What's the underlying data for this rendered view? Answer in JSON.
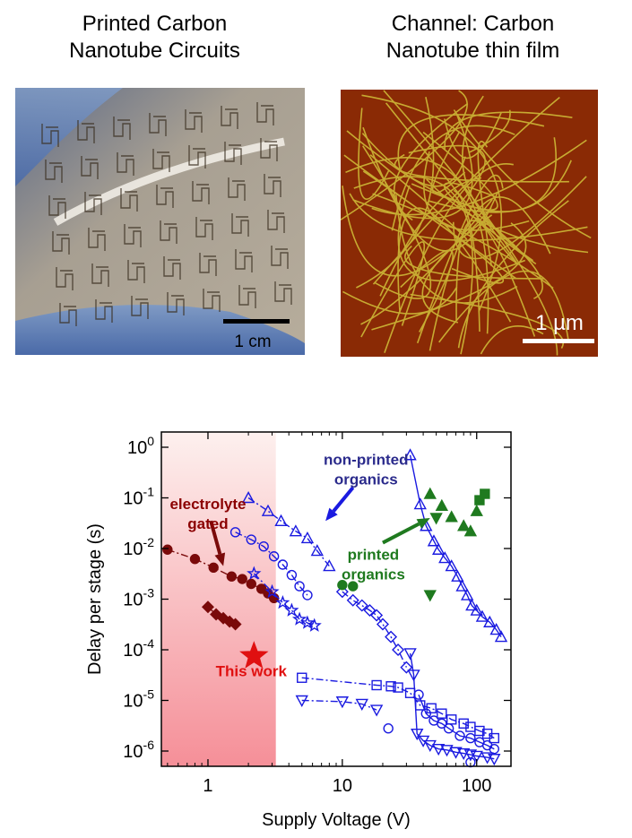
{
  "captions": {
    "left": [
      "Printed Carbon",
      "Nanotube Circuits"
    ],
    "right": [
      "Channel: Carbon",
      "Nanotube thin film"
    ]
  },
  "photos": {
    "left": {
      "subject": "flexible substrate with printed carbon nanotube circuits held by gloved hand",
      "scale_label": "1 cm"
    },
    "right": {
      "subject": "microscope image of carbon nanotube network",
      "scale_label": "1 µm"
    }
  },
  "chart_data": {
    "type": "scatter",
    "xlabel": "Supply Voltage (V)",
    "ylabel": "Delay per stage (s)",
    "x_scale": "log",
    "y_scale": "log",
    "xlim": [
      0.45,
      180
    ],
    "ylim": [
      5e-07,
      2
    ],
    "x_ticks": [
      {
        "v": 1,
        "label": "1"
      },
      {
        "v": 10,
        "label": "10"
      },
      {
        "v": 100,
        "label": "100"
      }
    ],
    "y_ticks": [
      {
        "v": 1,
        "exp": "0"
      },
      {
        "v": 0.1,
        "exp": "-1"
      },
      {
        "v": 0.01,
        "exp": "-2"
      },
      {
        "v": 0.001,
        "exp": "-3"
      },
      {
        "v": 0.0001,
        "exp": "-4"
      },
      {
        "v": 1e-05,
        "exp": "-5"
      },
      {
        "v": 1e-06,
        "exp": "-6"
      }
    ],
    "tick_base": "10",
    "shaded_region": {
      "x_end": 3.2,
      "color_top": "#fdf0ee",
      "color_bottom": "#f58f98"
    },
    "annotations": [
      {
        "lines": [
          "electrolyte",
          "gated"
        ],
        "color": "#8b0000",
        "x": 1.0,
        "y": 0.06
      },
      {
        "lines": [
          "non-printed",
          "organics"
        ],
        "color": "#2b2b8c",
        "x": 15,
        "y": 0.45
      },
      {
        "lines": [
          "printed",
          "organics"
        ],
        "color": "#1f7a1f",
        "x": 17,
        "y": 0.006
      },
      {
        "lines": [
          "This work"
        ],
        "color": "#e01010",
        "x": 2.1,
        "y": 3e-05
      }
    ],
    "series": [
      {
        "marker": "circle-filled",
        "color": "#7a0a0a",
        "line": "dashdot",
        "points": [
          [
            0.5,
            0.0095
          ],
          [
            0.8,
            0.0062
          ],
          [
            1.1,
            0.0042
          ],
          [
            1.5,
            0.0028
          ],
          [
            1.8,
            0.0025
          ],
          [
            2.1,
            0.002
          ],
          [
            2.5,
            0.0016
          ],
          [
            2.8,
            0.0013
          ],
          [
            3.1,
            0.00105
          ]
        ]
      },
      {
        "marker": "diamond-filled",
        "color": "#7a0a0a",
        "line": "solid",
        "points": [
          [
            1.0,
            0.0007
          ],
          [
            1.15,
            0.0005
          ],
          [
            1.3,
            0.00042
          ],
          [
            1.45,
            0.00036
          ],
          [
            1.6,
            0.00032
          ]
        ]
      },
      {
        "marker": "triangle-up-open",
        "color": "#1a1ae0",
        "line": "dashdot",
        "points": [
          [
            2.0,
            0.1
          ],
          [
            2.8,
            0.055
          ],
          [
            3.5,
            0.035
          ],
          [
            4.5,
            0.022
          ],
          [
            5.5,
            0.016
          ],
          [
            6.5,
            0.009
          ],
          [
            8,
            0.0045
          ]
        ]
      },
      {
        "marker": "circle-open",
        "color": "#1a1ae0",
        "line": "dashdot",
        "points": [
          [
            1.6,
            0.021
          ],
          [
            2.1,
            0.015
          ],
          [
            2.6,
            0.011
          ],
          [
            3.1,
            0.007
          ],
          [
            3.6,
            0.0048
          ],
          [
            4.2,
            0.003
          ],
          [
            4.8,
            0.0018
          ],
          [
            5.5,
            0.0012
          ]
        ]
      },
      {
        "marker": "star-open",
        "color": "#1a1ae0",
        "line": "dashdot",
        "points": [
          [
            2.2,
            0.0032
          ],
          [
            3.0,
            0.0014
          ],
          [
            3.6,
            0.00085
          ],
          [
            4.2,
            0.0006
          ],
          [
            4.8,
            0.0004
          ],
          [
            5.5,
            0.00034
          ],
          [
            6.2,
            0.0003
          ]
        ]
      },
      {
        "marker": "diamond-open",
        "color": "#1a1ae0",
        "line": "dashdot",
        "points": [
          [
            10,
            0.0014
          ],
          [
            12,
            0.00095
          ],
          [
            14,
            0.00075
          ],
          [
            16,
            0.0006
          ],
          [
            18,
            0.00048
          ],
          [
            20,
            0.00032
          ],
          [
            23,
            0.00018
          ],
          [
            26,
            0.0001
          ],
          [
            30,
            4.5e-05
          ]
        ]
      },
      {
        "marker": "triangle-up-open",
        "color": "#1a1ae0",
        "line": "solid",
        "points": [
          [
            32,
            0.7
          ],
          [
            38,
            0.075
          ],
          [
            42,
            0.028
          ],
          [
            48,
            0.014
          ],
          [
            52,
            0.0095
          ],
          [
            58,
            0.0065
          ],
          [
            65,
            0.0045
          ],
          [
            72,
            0.0028
          ],
          [
            78,
            0.0018
          ],
          [
            85,
            0.0012
          ],
          [
            92,
            0.00075
          ],
          [
            100,
            0.0006
          ],
          [
            110,
            0.00045
          ],
          [
            125,
            0.00035
          ],
          [
            140,
            0.00025
          ],
          [
            152,
            0.00018
          ]
        ]
      },
      {
        "marker": "triangle-down-open",
        "color": "#1a1ae0",
        "line": "solid",
        "points": [
          [
            32,
            8.5e-05
          ],
          [
            34,
            3.2e-05
          ],
          [
            36,
            2.2e-06
          ],
          [
            40,
            1.6e-06
          ],
          [
            45,
            1.3e-06
          ],
          [
            52,
            1.1e-06
          ],
          [
            60,
            1.05e-06
          ],
          [
            70,
            9.5e-07
          ],
          [
            80,
            9e-07
          ],
          [
            90,
            8.5e-07
          ],
          [
            100,
            8e-07
          ],
          [
            120,
            7.5e-07
          ],
          [
            135,
            7e-07
          ]
        ]
      },
      {
        "marker": "triangle-down-open",
        "color": "#1a1ae0",
        "line": "dashdot",
        "points": [
          [
            5,
            1e-05
          ],
          [
            10,
            9.5e-06
          ],
          [
            14,
            8.5e-06
          ],
          [
            18,
            6.5e-06
          ]
        ]
      },
      {
        "marker": "square-open",
        "color": "#1a1ae0",
        "line": "dashdot",
        "points": [
          [
            5,
            2.8e-05
          ],
          [
            18,
            2e-05
          ],
          [
            23,
            1.9e-05
          ],
          [
            26,
            1.8e-05
          ],
          [
            32,
            1.4e-05
          ],
          [
            38,
            8e-06
          ],
          [
            46,
            7e-06
          ],
          [
            55,
            5.5e-06
          ],
          [
            65,
            4.2e-06
          ],
          [
            80,
            3.5e-06
          ],
          [
            90,
            3e-06
          ],
          [
            105,
            2.5e-06
          ],
          [
            120,
            2.2e-06
          ],
          [
            135,
            1.8e-06
          ]
        ]
      },
      {
        "marker": "circle-open",
        "color": "#1a1ae0",
        "line": "solid",
        "points": [
          [
            37,
            1.3e-05
          ],
          [
            42,
            5.5e-06
          ],
          [
            48,
            4e-06
          ],
          [
            55,
            3.5e-06
          ],
          [
            62,
            2.8e-06
          ],
          [
            75,
            2e-06
          ],
          [
            90,
            1.8e-06
          ],
          [
            105,
            1.5e-06
          ],
          [
            120,
            1.3e-06
          ],
          [
            135,
            1.1e-06
          ]
        ]
      },
      {
        "marker": "circle-open",
        "color": "#1a1ae0",
        "line": "none",
        "points": [
          [
            22,
            2.8e-06
          ],
          [
            90,
            6e-07
          ]
        ]
      },
      {
        "marker": "circle-filled",
        "color": "#1f7a1f",
        "line": "none",
        "points": [
          [
            10,
            0.0019
          ],
          [
            12,
            0.0018
          ]
        ]
      },
      {
        "marker": "triangle-up-filled",
        "color": "#1f7a1f",
        "line": "none",
        "points": [
          [
            45,
            0.12
          ],
          [
            55,
            0.07
          ],
          [
            65,
            0.042
          ],
          [
            80,
            0.028
          ],
          [
            90,
            0.022
          ],
          [
            100,
            0.055
          ]
        ]
      },
      {
        "marker": "triangle-down-filled",
        "color": "#1f7a1f",
        "line": "none",
        "points": [
          [
            45,
            0.0012
          ],
          [
            50,
            0.04
          ]
        ]
      },
      {
        "marker": "square-filled",
        "color": "#1f7a1f",
        "line": "none",
        "points": [
          [
            105,
            0.09
          ],
          [
            115,
            0.12
          ]
        ]
      },
      {
        "marker": "star-filled",
        "color": "#e01010",
        "line": "none",
        "points": [
          [
            2.2,
            7.5e-05
          ]
        ]
      }
    ],
    "arrows": [
      {
        "color": "#7a0a0a",
        "from": [
          1.05,
          0.035
        ],
        "to": [
          1.3,
          0.0045
        ]
      },
      {
        "color": "#1a1ae0",
        "from": [
          12,
          0.16
        ],
        "to": [
          7.5,
          0.035
        ]
      },
      {
        "color": "#1f7a1f",
        "from": [
          20,
          0.013
        ],
        "to": [
          45,
          0.04
        ]
      }
    ]
  }
}
